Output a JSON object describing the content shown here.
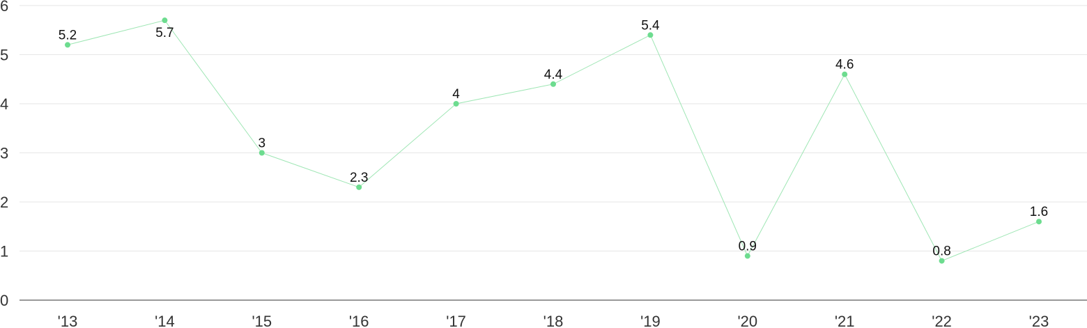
{
  "chart_data": {
    "type": "line",
    "title": "",
    "xlabel": "",
    "ylabel": "",
    "categories": [
      "'13",
      "'14",
      "'15",
      "'16",
      "'17",
      "'18",
      "'19",
      "'20",
      "'21",
      "'22",
      "'23"
    ],
    "series": [
      {
        "values": [
          5.2,
          5.7,
          3,
          2.3,
          4,
          4.4,
          5.4,
          0.9,
          4.6,
          0.8,
          1.6
        ],
        "value_labels": [
          "5.2",
          "5.7",
          "3",
          "2.3",
          "4",
          "4.4",
          "5.4",
          "0.9",
          "4.6",
          "0.8",
          "1.6"
        ],
        "color": "#6ddc8f",
        "line_color": "#9ee6b4"
      }
    ],
    "ylim": [
      0,
      6
    ],
    "yticks": [
      0,
      1,
      2,
      3,
      4,
      5,
      6
    ],
    "ytick_labels": [
      "0",
      "1",
      "2",
      "3",
      "4",
      "5",
      "6"
    ],
    "grid": true,
    "legend": "none"
  }
}
